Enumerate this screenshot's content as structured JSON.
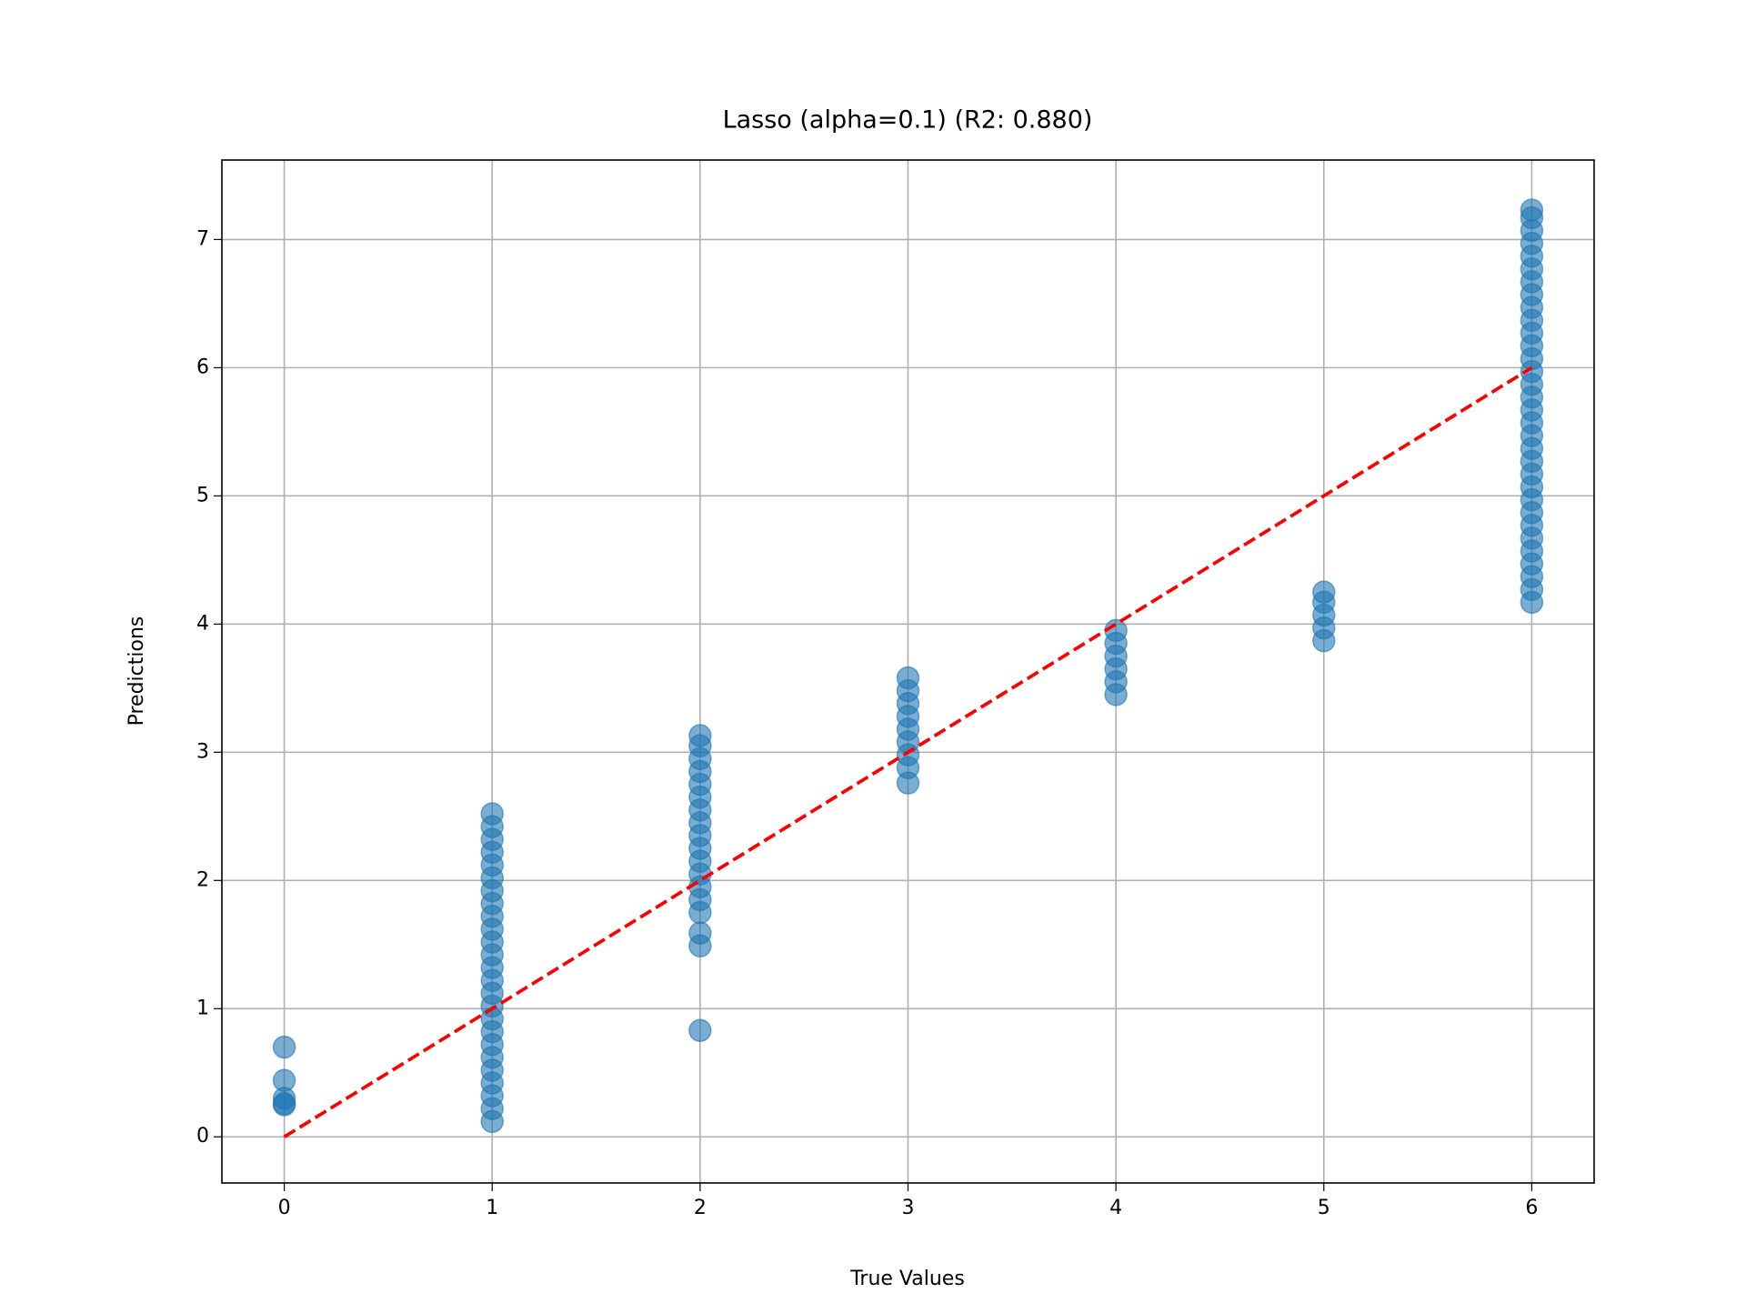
{
  "chart_data": {
    "type": "scatter",
    "title": "Lasso (alpha=0.1) (R2: 0.880)",
    "x_label": "True Values",
    "y_label": "Predictions",
    "color": "#1f77b4",
    "alpha": 0.6,
    "grid": true,
    "xlim": [
      -0.3,
      6.3
    ],
    "ylim": [
      -0.36,
      7.62
    ],
    "xticks": [
      0,
      1,
      2,
      3,
      4,
      5,
      6
    ],
    "yticks": [
      0,
      1,
      2,
      3,
      4,
      5,
      6,
      7
    ],
    "x": [
      0,
      0,
      0,
      0,
      0,
      1,
      1,
      1,
      1,
      1,
      1,
      1,
      1,
      1,
      1,
      1,
      1,
      1,
      1,
      1,
      1,
      1,
      1,
      1,
      1,
      1,
      1,
      1,
      1,
      1,
      2,
      2,
      2,
      2,
      2,
      2,
      2,
      2,
      2,
      2,
      2,
      2,
      2,
      2,
      2,
      2,
      2,
      2,
      3,
      3,
      3,
      3,
      3,
      3,
      3,
      3,
      3,
      4,
      4,
      4,
      4,
      4,
      4,
      5,
      5,
      5,
      5,
      5,
      6,
      6,
      6,
      6,
      6,
      6,
      6,
      6,
      6,
      6,
      6,
      6,
      6,
      6,
      6,
      6,
      6,
      6,
      6,
      6,
      6,
      6,
      6,
      6,
      6,
      6,
      6,
      6,
      6,
      6,
      6,
      6
    ],
    "values": [
      0.7,
      0.44,
      0.3,
      0.26,
      0.25,
      0.12,
      0.22,
      0.32,
      0.42,
      0.52,
      0.62,
      0.72,
      0.82,
      0.92,
      1.02,
      1.12,
      1.22,
      1.32,
      1.42,
      1.52,
      1.62,
      1.72,
      1.82,
      1.92,
      2.02,
      2.12,
      2.22,
      2.32,
      2.42,
      2.52,
      0.83,
      1.49,
      1.59,
      1.75,
      1.85,
      1.95,
      2.05,
      2.15,
      2.25,
      2.35,
      2.45,
      2.55,
      2.65,
      2.75,
      2.85,
      2.95,
      3.05,
      3.13,
      2.76,
      2.88,
      2.98,
      3.08,
      3.18,
      3.28,
      3.38,
      3.48,
      3.58,
      3.45,
      3.55,
      3.65,
      3.75,
      3.85,
      3.95,
      3.87,
      3.97,
      4.07,
      4.17,
      4.25,
      4.17,
      4.27,
      4.37,
      4.47,
      4.57,
      4.67,
      4.77,
      4.87,
      4.97,
      5.07,
      5.17,
      5.27,
      5.37,
      5.47,
      5.57,
      5.67,
      5.77,
      5.87,
      5.97,
      6.07,
      6.17,
      6.27,
      6.37,
      6.47,
      6.57,
      6.67,
      6.77,
      6.87,
      6.97,
      7.07,
      7.17,
      7.23
    ],
    "reference_line": {
      "x": [
        0,
        6
      ],
      "values": [
        0,
        6
      ],
      "color": "#ff0000"
    }
  }
}
